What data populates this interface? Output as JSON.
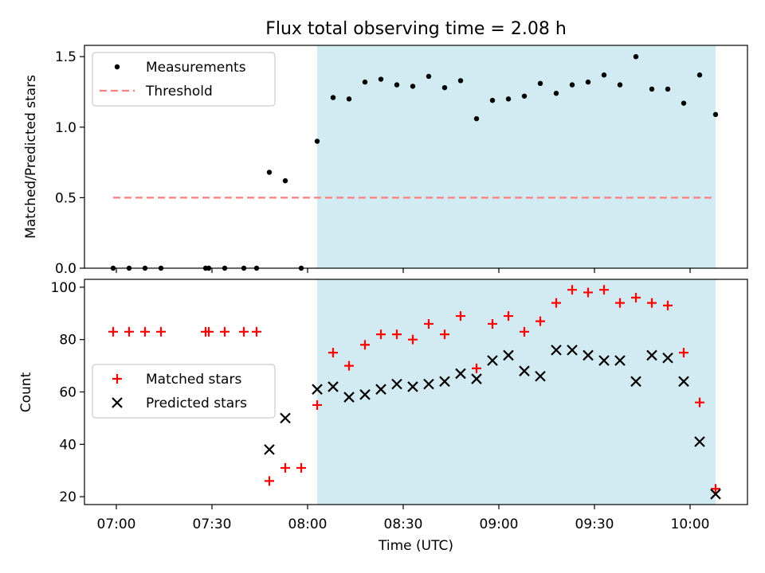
{
  "figure": {
    "title": "Flux total observing time = 2.08 h",
    "xlabel": "Time (UTC)",
    "xtick_labels": [
      "07:00",
      "07:30",
      "08:00",
      "08:30",
      "09:00",
      "09:30",
      "10:00"
    ],
    "highlight_color": "#add8e6"
  },
  "chart_data": [
    {
      "type": "scatter",
      "ylabel": "Matched/Predicted stars",
      "ylim": [
        0,
        1.58
      ],
      "yticks": [
        0.0,
        0.5,
        1.0,
        1.5
      ],
      "ytick_labels": [
        "0.0",
        "0.5",
        "1.0",
        "1.5"
      ],
      "xlim": [
        "06:50",
        "10:18"
      ],
      "grid": false,
      "legend_position": "top-left",
      "shaded_interval": [
        "08:03",
        "10:08"
      ],
      "series": [
        {
          "name": "Measurements",
          "marker": "dot",
          "color": "#000000",
          "x": [
            "06:59",
            "07:04",
            "07:09",
            "07:14",
            "07:28",
            "07:29",
            "07:34",
            "07:40",
            "07:44",
            "07:48",
            "07:53",
            "07:58",
            "08:03",
            "08:08",
            "08:13",
            "08:18",
            "08:23",
            "08:28",
            "08:33",
            "08:38",
            "08:43",
            "08:48",
            "08:53",
            "08:58",
            "09:03",
            "09:08",
            "09:13",
            "09:18",
            "09:23",
            "09:28",
            "09:33",
            "09:38",
            "09:43",
            "09:48",
            "09:53",
            "09:58",
            "10:03",
            "10:08"
          ],
          "y": [
            0,
            0,
            0,
            0,
            0,
            0,
            0,
            0,
            0,
            0.68,
            0.62,
            0,
            0.9,
            1.21,
            1.2,
            1.32,
            1.34,
            1.3,
            1.29,
            1.36,
            1.28,
            1.33,
            1.06,
            1.19,
            1.2,
            1.22,
            1.31,
            1.24,
            1.3,
            1.32,
            1.37,
            1.3,
            1.5,
            1.27,
            1.27,
            1.17,
            1.37,
            1.09
          ]
        },
        {
          "name": "Threshold",
          "style": "dashed",
          "color": "#ff7f7f",
          "x": [
            "06:59",
            "10:08"
          ],
          "y": [
            0.5,
            0.5
          ]
        }
      ]
    },
    {
      "type": "scatter",
      "ylabel": "Count",
      "ylim": [
        17,
        103
      ],
      "yticks": [
        20,
        40,
        60,
        80,
        100
      ],
      "ytick_labels": [
        "20",
        "40",
        "60",
        "80",
        "100"
      ],
      "xlim": [
        "06:50",
        "10:18"
      ],
      "grid": false,
      "legend_position": "center-left",
      "shaded_interval": [
        "08:03",
        "10:08"
      ],
      "series": [
        {
          "name": "Matched stars",
          "marker": "plus",
          "color": "#ff0000",
          "x": [
            "06:59",
            "07:04",
            "07:09",
            "07:14",
            "07:28",
            "07:29",
            "07:34",
            "07:40",
            "07:44",
            "07:48",
            "07:53",
            "07:58",
            "08:03",
            "08:08",
            "08:13",
            "08:18",
            "08:23",
            "08:28",
            "08:33",
            "08:38",
            "08:43",
            "08:48",
            "08:53",
            "08:58",
            "09:03",
            "09:08",
            "09:13",
            "09:18",
            "09:23",
            "09:28",
            "09:33",
            "09:38",
            "09:43",
            "09:48",
            "09:53",
            "09:58",
            "10:03",
            "10:08"
          ],
          "y": [
            83,
            83,
            83,
            83,
            83,
            83,
            83,
            83,
            83,
            26,
            31,
            31,
            55,
            75,
            70,
            78,
            82,
            82,
            80,
            86,
            82,
            89,
            69,
            86,
            89,
            83,
            87,
            94,
            99,
            98,
            99,
            94,
            96,
            94,
            93,
            75,
            56,
            23
          ]
        },
        {
          "name": "Predicted stars",
          "marker": "x",
          "color": "#000000",
          "x": [
            "07:48",
            "07:53",
            "08:03",
            "08:08",
            "08:13",
            "08:18",
            "08:23",
            "08:28",
            "08:33",
            "08:38",
            "08:43",
            "08:48",
            "08:53",
            "08:58",
            "09:03",
            "09:08",
            "09:13",
            "09:18",
            "09:23",
            "09:28",
            "09:33",
            "09:38",
            "09:43",
            "09:48",
            "09:53",
            "09:58",
            "10:03",
            "10:08"
          ],
          "y": [
            38,
            50,
            61,
            62,
            58,
            59,
            61,
            63,
            62,
            63,
            64,
            67,
            65,
            72,
            74,
            68,
            66,
            76,
            76,
            74,
            72,
            72,
            64,
            74,
            73,
            64,
            41,
            21
          ]
        }
      ]
    }
  ]
}
